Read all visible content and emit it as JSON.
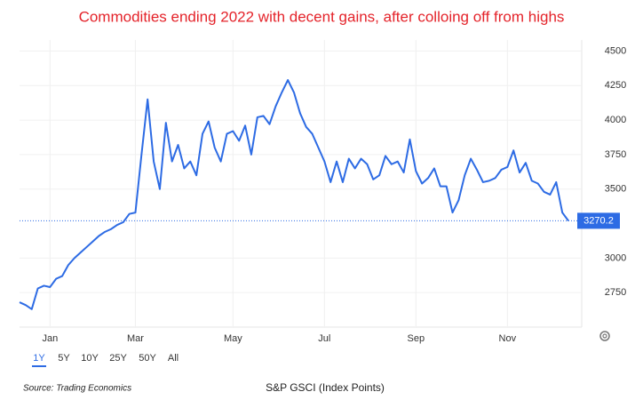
{
  "chart_data": {
    "type": "line",
    "title": "Commodities ending 2022 with decent gains, after colloing off from highs",
    "caption": "S&P GSCI (Index Points)",
    "source": "Source: Trading Economics",
    "range_buttons": [
      "1Y",
      "5Y",
      "10Y",
      "25Y",
      "50Y",
      "All"
    ],
    "categories": [
      null,
      null,
      null,
      null,
      null,
      "Jan",
      null,
      null,
      null,
      null,
      null,
      null,
      null,
      null,
      null,
      null,
      null,
      null,
      null,
      "Mar",
      null,
      null,
      null,
      null,
      null,
      null,
      null,
      null,
      null,
      null,
      null,
      null,
      null,
      null,
      null,
      "May",
      null,
      null,
      null,
      null,
      null,
      null,
      null,
      null,
      null,
      null,
      null,
      null,
      null,
      null,
      "Jul",
      null,
      null,
      null,
      null,
      null,
      null,
      null,
      null,
      null,
      null,
      null,
      null,
      null,
      null,
      "Sep",
      null,
      null,
      null,
      null,
      null,
      null,
      null,
      null,
      null,
      null,
      null,
      null,
      null,
      null,
      "Nov",
      null,
      null,
      null,
      null,
      null,
      null,
      null,
      null,
      null,
      null
    ],
    "series": [
      {
        "name": "S&P GSCI",
        "color": "#2d6be4",
        "values": [
          2680,
          2660,
          2630,
          2780,
          2800,
          2790,
          2850,
          2870,
          2950,
          3000,
          3040,
          3080,
          3120,
          3160,
          3190,
          3210,
          3240,
          3260,
          3320,
          3330,
          3750,
          4150,
          3700,
          3500,
          3980,
          3700,
          3820,
          3650,
          3700,
          3600,
          3900,
          3990,
          3800,
          3700,
          3900,
          3920,
          3850,
          3960,
          3750,
          4020,
          4030,
          3970,
          4100,
          4200,
          4290,
          4200,
          4050,
          3950,
          3900,
          3800,
          3700,
          3550,
          3700,
          3550,
          3720,
          3650,
          3720,
          3680,
          3570,
          3600,
          3740,
          3680,
          3700,
          3620,
          3860,
          3630,
          3540,
          3580,
          3650,
          3520,
          3520,
          3330,
          3420,
          3600,
          3720,
          3640,
          3550,
          3560,
          3580,
          3640,
          3660,
          3780,
          3620,
          3690,
          3560,
          3540,
          3480,
          3460,
          3550,
          3330,
          3270.2
        ]
      }
    ],
    "ylim": [
      2500,
      4580
    ],
    "yticks": [
      2750,
      3000,
      3500,
      3750,
      4000,
      4250,
      4500
    ],
    "grid": true
  }
}
